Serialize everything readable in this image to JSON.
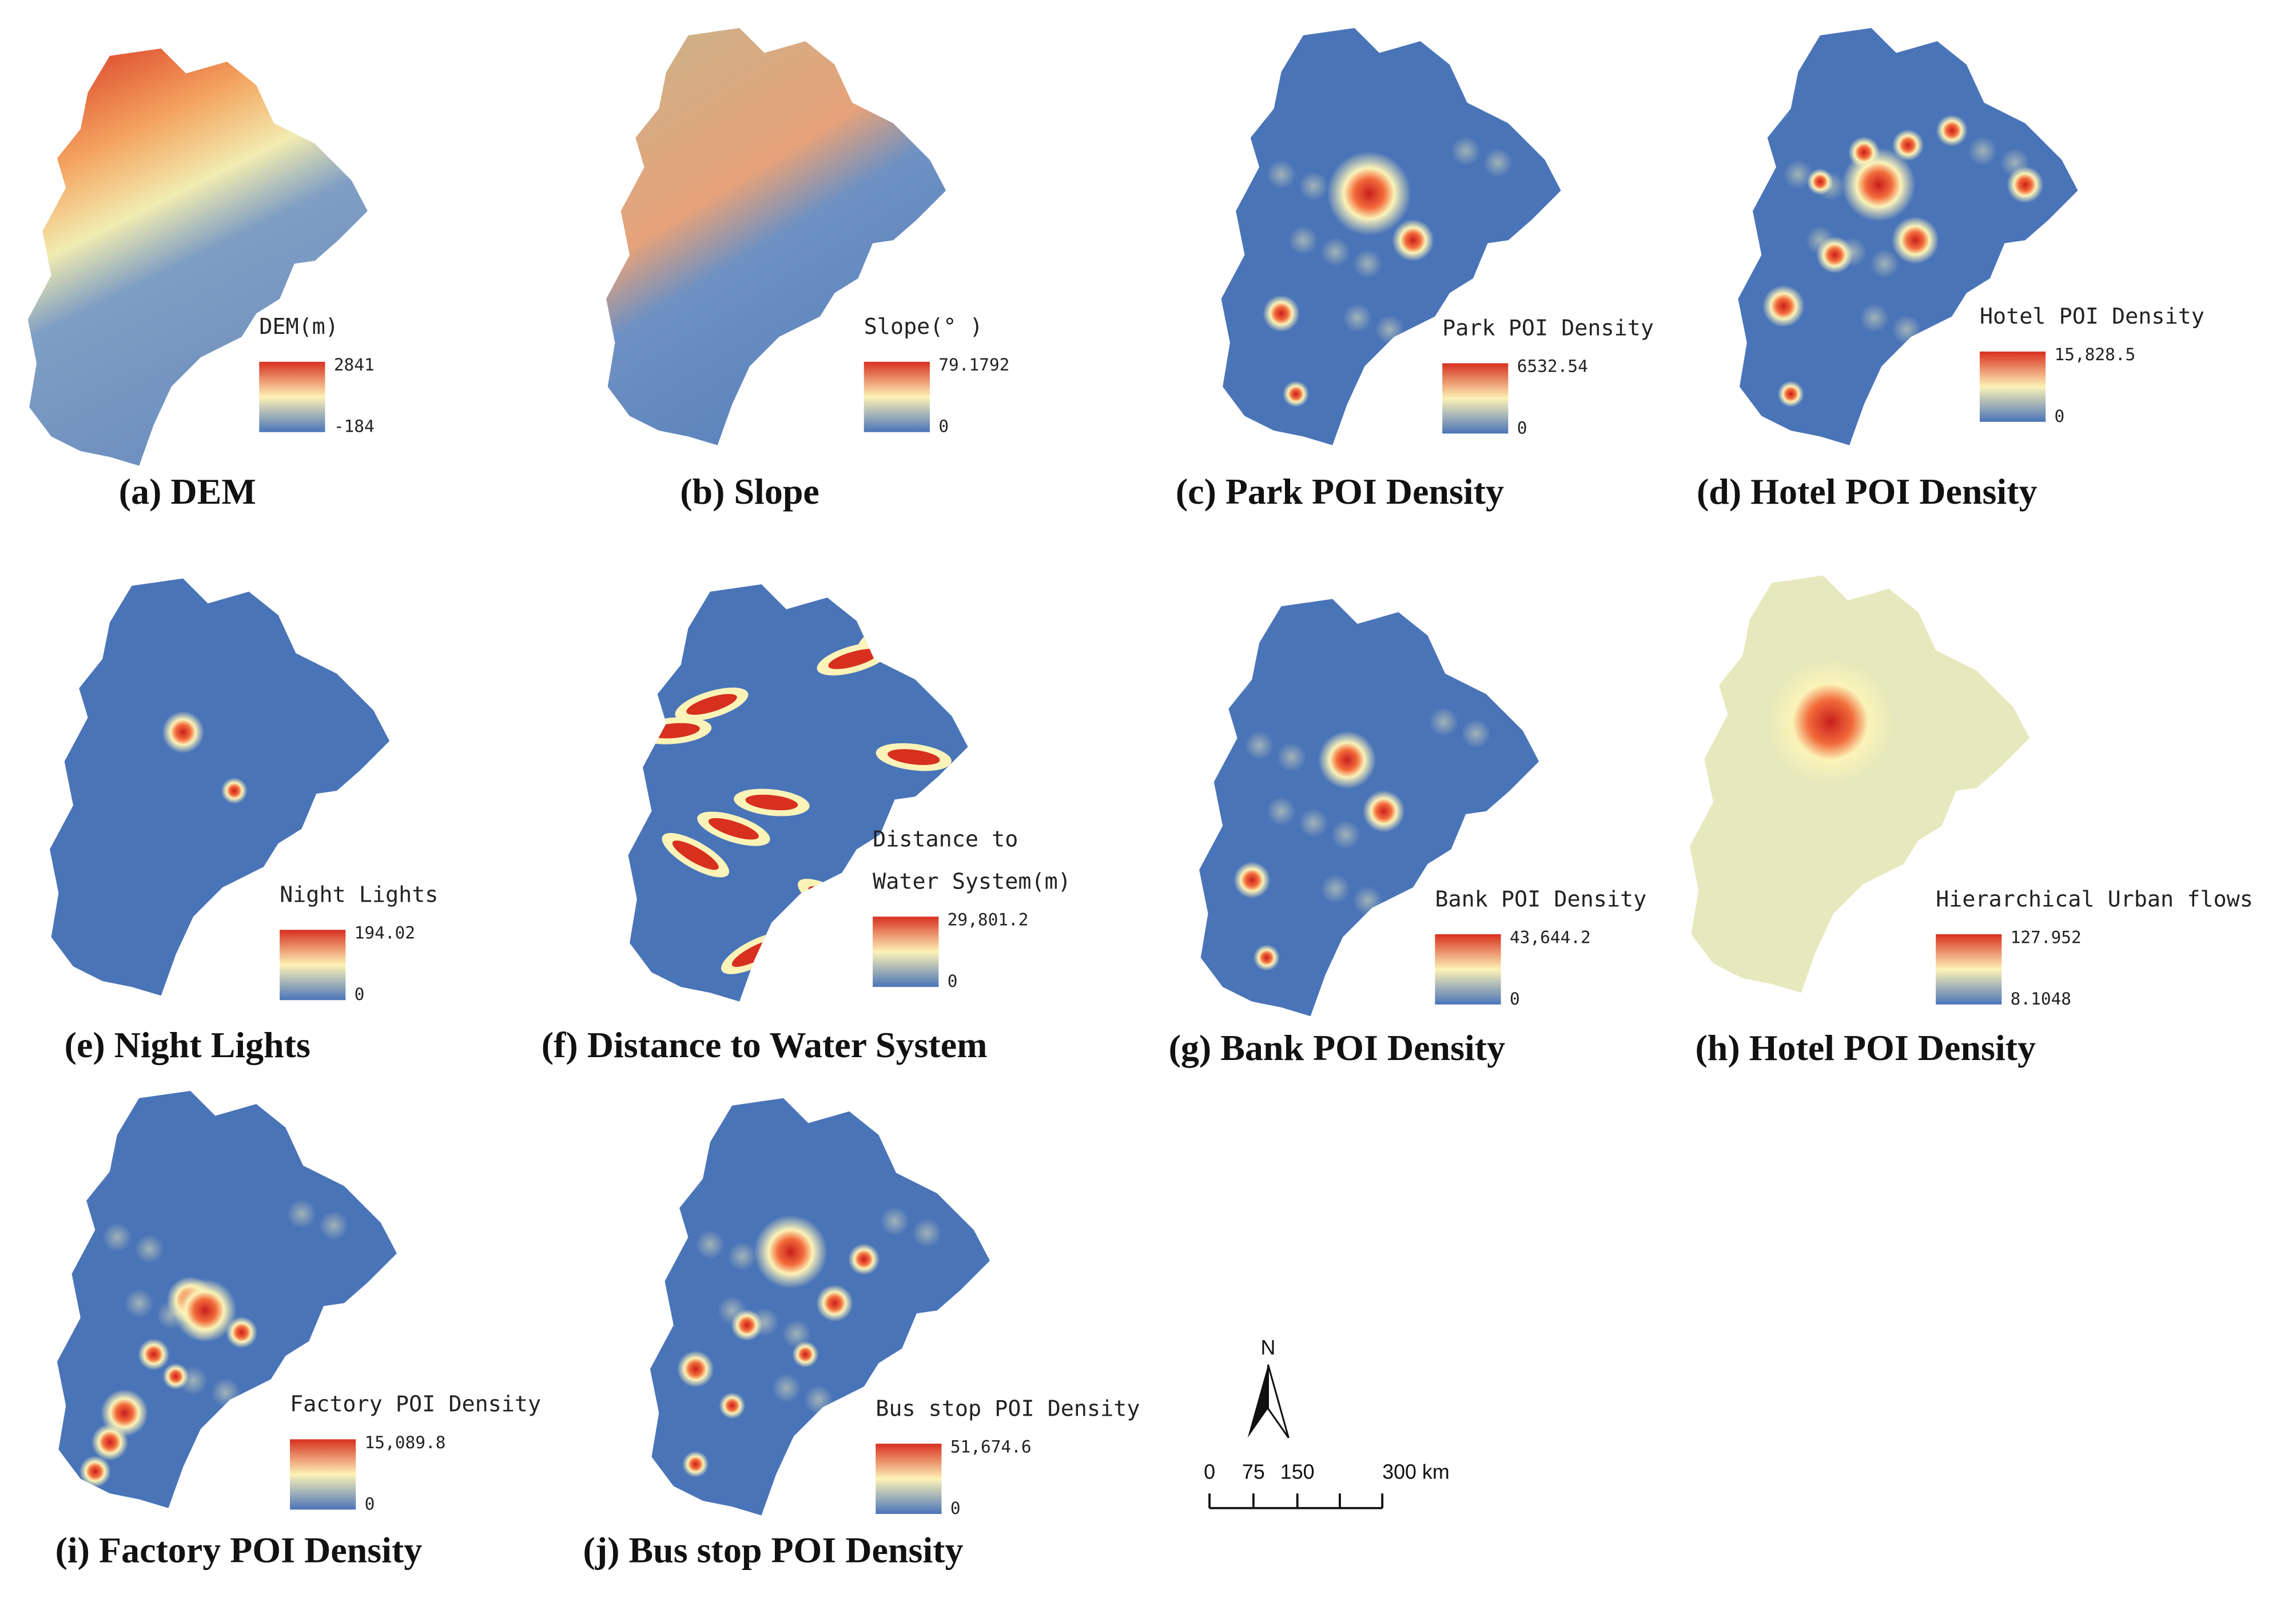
{
  "panels": [
    {
      "caption": "(a) DEM",
      "legend_title": [
        "DEM(m)"
      ],
      "legend_max": "2841",
      "legend_min": "-184"
    },
    {
      "caption": "(b) Slope",
      "legend_title": [
        "Slope(° )"
      ],
      "legend_max": "79.1792",
      "legend_min": "0"
    },
    {
      "caption": "(c) Park POI Density",
      "legend_title": [
        "Park POI Density"
      ],
      "legend_max": "6532.54",
      "legend_min": "0"
    },
    {
      "caption": "(d) Hotel POI Density",
      "legend_title": [
        "Hotel POI Density"
      ],
      "legend_max": "15,828.5",
      "legend_min": "0"
    },
    {
      "caption": "(e) Night Lights",
      "legend_title": [
        "Night Lights"
      ],
      "legend_max": "194.02",
      "legend_min": "0"
    },
    {
      "caption": "(f) Distance to Water System",
      "legend_title": [
        "Distance to",
        "Water System(m)"
      ],
      "legend_max": "29,801.2",
      "legend_min": "0"
    },
    {
      "caption": "(g) Bank POI Density",
      "legend_title": [
        "Bank POI Density"
      ],
      "legend_max": "43,644.2",
      "legend_min": "0"
    },
    {
      "caption": "(h) Hotel POI Density",
      "legend_title": [
        "Hierarchical Urban flows"
      ],
      "legend_max": "127.952",
      "legend_min": "8.1048"
    },
    {
      "caption": "(i) Factory POI Density",
      "legend_title": [
        "Factory POI Density"
      ],
      "legend_max": "15,089.8",
      "legend_min": "0"
    },
    {
      "caption": "(j) Bus stop POI Density",
      "legend_title": [
        "Bus stop POI Density"
      ],
      "legend_max": "51,674.6",
      "legend_min": "0"
    }
  ],
  "north": "N",
  "scale_bar": {
    "labels": [
      "0",
      "75",
      "150",
      "300 km"
    ]
  }
}
